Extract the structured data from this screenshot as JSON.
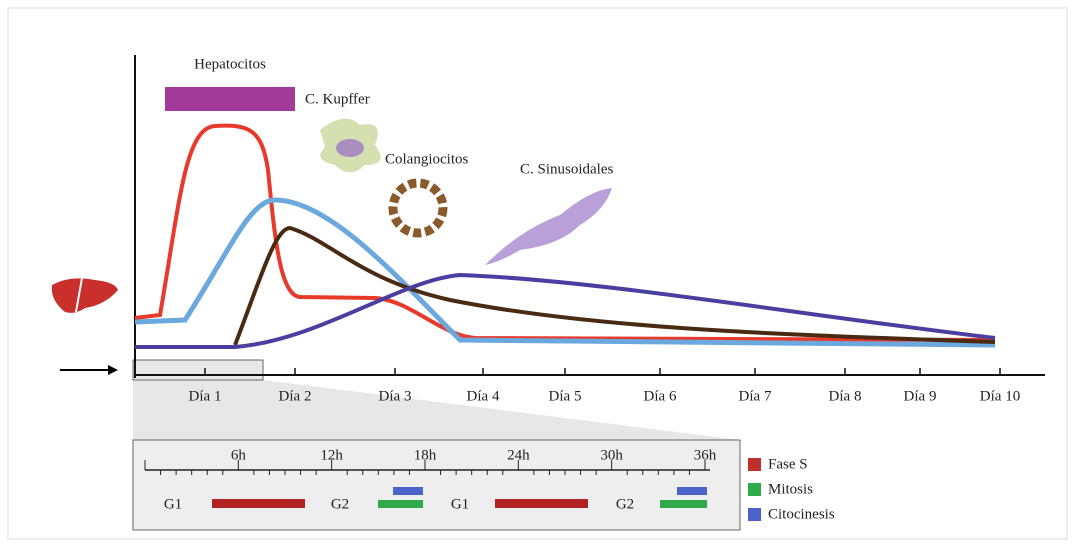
{
  "cells": [
    "Hepatocitos",
    "C. Kupffer",
    "Colangiocitos",
    "C. Sinusoidales"
  ],
  "days": [
    "Día 1",
    "Día 2",
    "Día 3",
    "Día 4",
    "Día 5",
    "Día 6",
    "Día 7",
    "Día 8",
    "Día 9",
    "Día 10"
  ],
  "inset": {
    "hours": [
      "6h",
      "12h",
      "18h",
      "24h",
      "30h",
      "36h"
    ],
    "phases": [
      "G1",
      "G2",
      "G1",
      "G2"
    ]
  },
  "legend": [
    "Fase S",
    "Mitosis",
    "Citocinesis"
  ]
}
